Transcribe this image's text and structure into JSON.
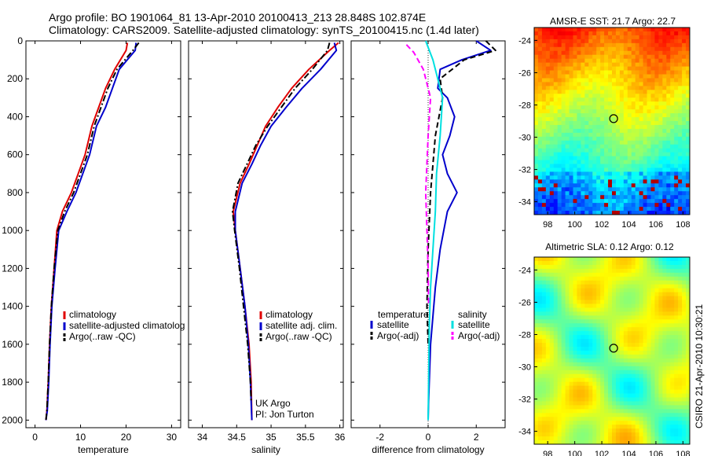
{
  "header": {
    "line1": "Argo profile: BO 1901064_81 13-Apr-2010 20100413_213 28.848S 102.874E",
    "line2": "Climatology: CARS2009. Satellite-adjusted climatology: synTS_20100415.nc (1.4d later)"
  },
  "side_label": "CSIRO 21-Apr-2010 10:30:21",
  "colors": {
    "climatology": "#e00000",
    "satellite": "#0000cc",
    "argo": "#000000",
    "sal_satellite": "#00e0e0",
    "sal_argo": "#ff00ff"
  },
  "chart_data": [
    {
      "type": "line",
      "id": "temperature",
      "xlabel": "temperature",
      "ylabel": "",
      "xlim": [
        -2,
        32
      ],
      "ylim": [
        2040,
        0
      ],
      "xticks": [
        0,
        10,
        20,
        30
      ],
      "yticks": [
        0,
        200,
        400,
        600,
        800,
        1000,
        1200,
        1400,
        1600,
        1800,
        2000
      ],
      "series": [
        {
          "name": "climatology",
          "style": "solid",
          "x": [
            20.3,
            20.0,
            17.5,
            15.5,
            14.0,
            12.5,
            11.0,
            9.5,
            8.0,
            6.0,
            4.8,
            4.2,
            3.6,
            3.2,
            2.9,
            2.6,
            2.4
          ],
          "y": [
            10,
            50,
            150,
            250,
            350,
            450,
            600,
            700,
            800,
            900,
            1000,
            1200,
            1400,
            1600,
            1800,
            1950,
            2000
          ]
        },
        {
          "name": "satellite-adjusted climatology",
          "style": "solid",
          "x": [
            22.2,
            22.0,
            18.5,
            17.0,
            15.5,
            13.5,
            12.0,
            10.5,
            9.0,
            7.0,
            5.2,
            4.4,
            3.7,
            3.3,
            3.0,
            2.7,
            2.4
          ],
          "y": [
            10,
            50,
            150,
            250,
            350,
            450,
            600,
            700,
            800,
            900,
            1000,
            1200,
            1400,
            1600,
            1800,
            1950,
            2000
          ]
        },
        {
          "name": "Argo(..raw -QC)",
          "style": "dashdot",
          "x": [
            22.8,
            21.5,
            18.0,
            16.0,
            14.5,
            13.0,
            11.5,
            10.0,
            8.5,
            6.5,
            5.0,
            4.2,
            3.6,
            3.2,
            2.9,
            2.6,
            2.4
          ],
          "y": [
            10,
            50,
            150,
            250,
            350,
            450,
            600,
            700,
            800,
            900,
            1000,
            1200,
            1400,
            1600,
            1800,
            1950,
            2000
          ]
        }
      ],
      "legend": [
        "climatology",
        "satellite-adjusted climatolog",
        "Argo(..raw -QC)"
      ]
    },
    {
      "type": "line",
      "id": "salinity",
      "xlabel": "salinity",
      "ylabel": "",
      "xlim": [
        33.8,
        36.05
      ],
      "ylim": [
        2040,
        0
      ],
      "xticks": [
        34,
        34.5,
        35,
        35.5,
        36
      ],
      "yticks": [],
      "series": [
        {
          "name": "climatology",
          "style": "solid",
          "x": [
            35.98,
            35.85,
            35.55,
            35.3,
            35.1,
            34.92,
            34.8,
            34.68,
            34.55,
            34.45,
            34.48,
            34.55,
            34.62,
            34.68,
            34.71,
            34.72
          ],
          "y": [
            10,
            50,
            150,
            250,
            350,
            450,
            550,
            650,
            750,
            900,
            1000,
            1200,
            1400,
            1600,
            1800,
            2000
          ]
        },
        {
          "name": "satellite adj. clim.",
          "style": "solid",
          "x": [
            35.92,
            35.95,
            35.72,
            35.45,
            35.22,
            35.0,
            34.85,
            34.72,
            34.58,
            34.48,
            34.48,
            34.55,
            34.62,
            34.67,
            34.7,
            34.72
          ],
          "y": [
            10,
            50,
            150,
            250,
            350,
            450,
            550,
            650,
            750,
            900,
            1000,
            1200,
            1400,
            1600,
            1800,
            2000
          ]
        },
        {
          "name": "Argo(..raw -QC)",
          "style": "dashdot",
          "x": [
            35.85,
            35.82,
            35.6,
            35.35,
            35.15,
            34.95,
            34.78,
            34.65,
            34.52,
            34.44,
            34.47,
            34.54,
            34.6,
            34.66,
            34.7,
            34.71
          ],
          "y": [
            10,
            50,
            150,
            250,
            350,
            450,
            550,
            650,
            750,
            900,
            1000,
            1200,
            1400,
            1600,
            1800,
            1900
          ]
        }
      ],
      "legend": [
        "climatology",
        "satellite adj. clim.",
        "Argo(..raw -QC)"
      ],
      "annotations": [
        "UK Argo",
        "PI: Jon Turton"
      ]
    },
    {
      "type": "line",
      "id": "difference",
      "xlabel": "difference from climatology",
      "ylabel": "",
      "xlim": [
        -3.2,
        3.2
      ],
      "ylim": [
        2040,
        0
      ],
      "xticks": [
        -2,
        0,
        2
      ],
      "yticks": [],
      "series": [
        {
          "name": "temperature satellite",
          "style": "solid",
          "color_key": "satellite",
          "x": [
            2.0,
            2.6,
            1.4,
            0.5,
            0.4,
            0.8,
            1.1,
            0.9,
            0.6,
            0.8,
            1.2,
            0.8,
            0.5,
            0.3,
            0.1,
            0.02,
            0.0
          ],
          "y": [
            0,
            50,
            100,
            150,
            250,
            300,
            400,
            500,
            600,
            700,
            800,
            900,
            1100,
            1300,
            1600,
            1900,
            2000
          ]
        },
        {
          "name": "temperature Argo(-adj)",
          "style": "dashed",
          "color_key": "argo",
          "x": [
            2.4,
            2.8,
            1.5,
            0.5,
            0.6,
            0.3,
            0.1,
            0.0,
            -0.05,
            0.0
          ],
          "y": [
            0,
            50,
            100,
            200,
            300,
            500,
            800,
            1100,
            1400,
            1600
          ]
        },
        {
          "name": "salinity satellite",
          "style": "solid",
          "color_key": "sal_satellite",
          "x": [
            -0.1,
            0.05,
            0.2,
            0.6,
            0.5,
            0.35,
            0.3,
            0.2,
            0.1,
            0.05,
            0.02,
            0.0
          ],
          "y": [
            0,
            50,
            100,
            300,
            500,
            700,
            900,
            1100,
            1300,
            1500,
            1800,
            2000
          ]
        },
        {
          "name": "salinity Argo(-adj)",
          "style": "dashed",
          "color_key": "sal_argo",
          "x": [
            -0.9,
            -0.6,
            -0.2,
            0.1,
            0.0,
            -0.1,
            -0.05,
            0.0,
            0.02
          ],
          "y": [
            20,
            60,
            150,
            300,
            500,
            800,
            1000,
            1200,
            1400
          ]
        }
      ],
      "legend_groups": {
        "temperature": {
          "title": "temperature",
          "items": [
            "satellite",
            "Argo(-adj)"
          ]
        },
        "salinity": {
          "title": "salinity",
          "items": [
            "satellite",
            "Argo(-adj)"
          ]
        }
      }
    },
    {
      "type": "heatmap",
      "id": "sst_map",
      "title": "AMSR-E SST: 21.7 Argo: 22.7",
      "xlim": [
        97,
        108.5
      ],
      "ylim": [
        -34.8,
        -23.2
      ],
      "xticks": [
        98,
        100,
        102,
        104,
        106,
        108
      ],
      "yticks": [
        -24,
        -26,
        -28,
        -30,
        -32,
        -34
      ],
      "marker": {
        "x": 102.874,
        "y": -28.848
      }
    },
    {
      "type": "heatmap",
      "id": "sla_map",
      "title": "Altimetric SLA: 0.12 Argo: 0.12",
      "xlim": [
        97,
        108.5
      ],
      "ylim": [
        -34.8,
        -23.2
      ],
      "xticks": [
        98,
        100,
        102,
        104,
        106,
        108
      ],
      "yticks": [
        -24,
        -26,
        -28,
        -30,
        -32,
        -34
      ],
      "marker": {
        "x": 102.874,
        "y": -28.848
      }
    }
  ]
}
